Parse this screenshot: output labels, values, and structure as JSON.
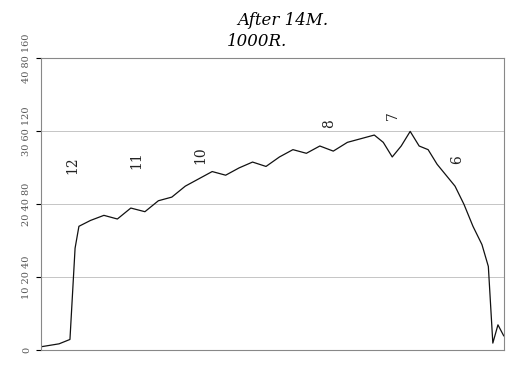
{
  "chart_data": {
    "type": "line",
    "title": "After 14M.",
    "subtitle": "1000R.",
    "x": [
      12.49,
      12.21,
      12.04,
      11.96,
      11.9,
      11.72,
      11.51,
      11.3,
      11.09,
      10.87,
      10.66,
      10.45,
      10.24,
      10.03,
      9.82,
      9.61,
      9.4,
      9.19,
      8.98,
      8.77,
      8.56,
      8.35,
      8.14,
      7.93,
      7.71,
      7.5,
      7.29,
      7.15,
      7.01,
      6.87,
      6.73,
      6.59,
      6.45,
      6.31,
      6.17,
      6.03,
      5.89,
      5.75,
      5.61,
      5.51,
      5.44,
      5.36,
      5.27
    ],
    "values": [
      0.5,
      0.9,
      1.5,
      14.0,
      17.0,
      17.8,
      18.5,
      18.0,
      19.5,
      19.0,
      20.5,
      21.0,
      22.5,
      23.5,
      24.5,
      24.0,
      25.0,
      25.8,
      25.2,
      26.5,
      27.5,
      27.0,
      28.0,
      27.3,
      28.5,
      29.0,
      29.5,
      28.5,
      26.5,
      28.0,
      30.0,
      28.0,
      27.5,
      25.5,
      24.0,
      22.5,
      20.0,
      17.0,
      14.5,
      11.5,
      1.0,
      3.5,
      2.0
    ],
    "color": "#111111",
    "xlim": [
      12.49,
      5.27
    ],
    "xticks": [],
    "ylim": [
      0,
      40
    ],
    "yticks": [
      0,
      {
        "value": 10,
        "label": "10 20 40"
      },
      {
        "value": 20,
        "label": "20 40 80"
      },
      {
        "value": 30,
        "label": "30 60 120"
      },
      {
        "value": 40,
        "label": "40 80 160"
      }
    ],
    "tick_labels": "y",
    "grid": true,
    "annotations": [
      {
        "text": "12",
        "x": 12,
        "y": 24.2
      },
      {
        "text": "11",
        "x": 11,
        "y": 24.8
      },
      {
        "text": "10",
        "x": 10,
        "y": 25.5
      },
      {
        "text": "8",
        "x": 8,
        "y": 30.5
      },
      {
        "text": "7",
        "x": 7,
        "y": 31.5
      },
      {
        "text": "6",
        "x": 6,
        "y": 25.5
      }
    ]
  }
}
